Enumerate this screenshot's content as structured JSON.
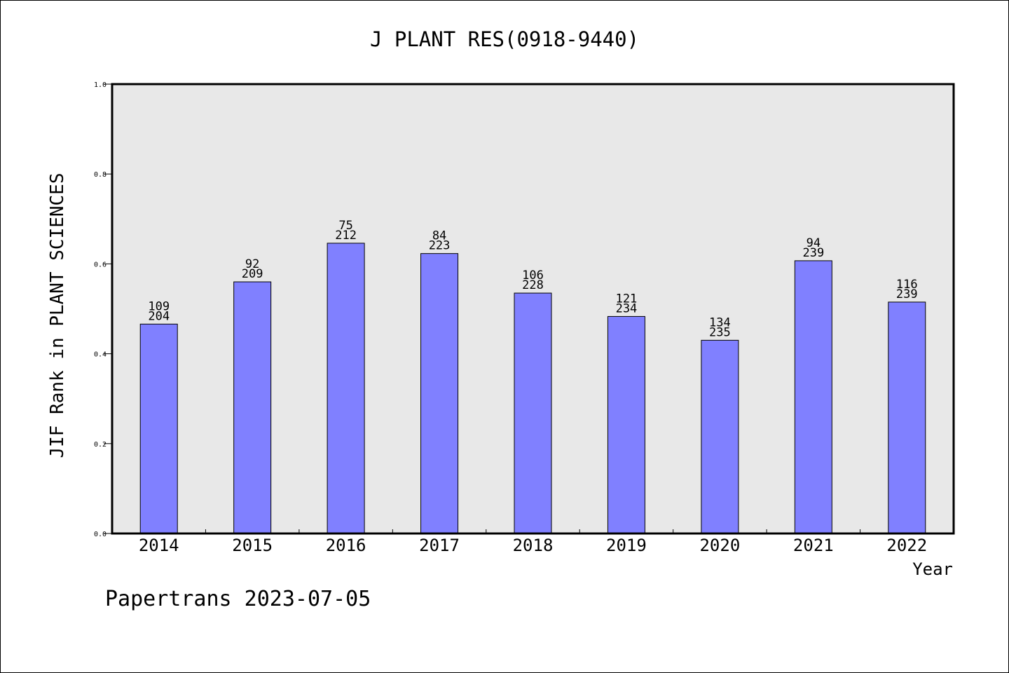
{
  "chart_data": {
    "type": "bar",
    "title": "J PLANT RES(0918-9440)",
    "xlabel": "Year",
    "ylabel": "JIF Rank in PLANT SCIENCES",
    "footer": "Papertrans 2023-07-05",
    "ylim": [
      0,
      1.0
    ],
    "yticks": [
      "0.0",
      "0.2",
      "0.4",
      "0.6",
      "0.8",
      "1.0"
    ],
    "grid": false,
    "bar_color": "#8080ff",
    "plot_bg": "#e8e8e8",
    "categories": [
      "2014",
      "2015",
      "2016",
      "2017",
      "2018",
      "2019",
      "2020",
      "2021",
      "2022"
    ],
    "values": [
      0.466,
      0.56,
      0.646,
      0.623,
      0.535,
      0.483,
      0.43,
      0.607,
      0.515
    ],
    "ranks": [
      "109",
      "92",
      "75",
      "84",
      "106",
      "121",
      "134",
      "94",
      "116"
    ],
    "totals": [
      "204",
      "209",
      "212",
      "223",
      "228",
      "234",
      "235",
      "239",
      "239"
    ]
  }
}
